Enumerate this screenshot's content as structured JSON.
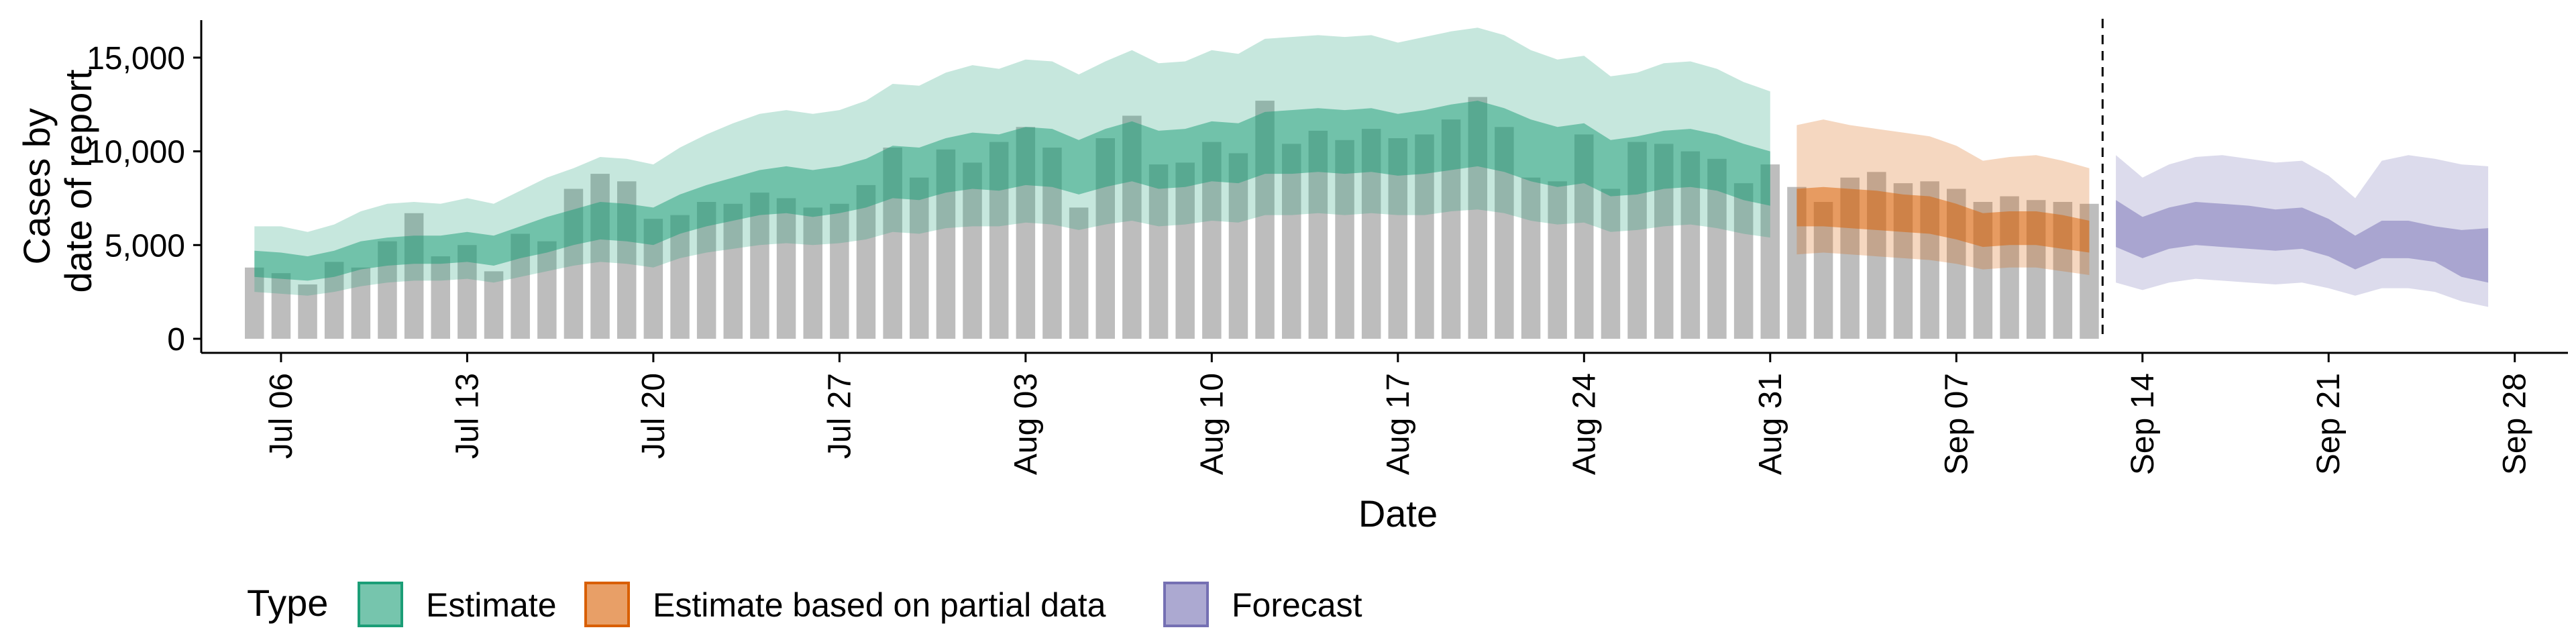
{
  "chart_data": {
    "type": "area",
    "xlabel": "Date",
    "ylabel_lines": [
      "Cases by",
      "date of report"
    ],
    "x_start": "2020-07-03",
    "x_end": "2020-09-30",
    "ylim": [
      0,
      17000
    ],
    "y_ticks": [
      0,
      5000,
      10000,
      15000
    ],
    "y_tick_labels": [
      "0",
      "5,000",
      "10,000",
      "15,000"
    ],
    "x_ticks": [
      "2020-07-06",
      "2020-07-13",
      "2020-07-20",
      "2020-07-27",
      "2020-08-03",
      "2020-08-10",
      "2020-08-17",
      "2020-08-24",
      "2020-08-31",
      "2020-09-07",
      "2020-09-14",
      "2020-09-21",
      "2020-09-28"
    ],
    "x_tick_labels": [
      "Jul 06",
      "Jul 13",
      "Jul 20",
      "Jul 27",
      "Aug 03",
      "Aug 10",
      "Aug 17",
      "Aug 24",
      "Aug 31",
      "Sep 07",
      "Sep 14",
      "Sep 21",
      "Sep 28"
    ],
    "vline_date": "2020-09-12",
    "grid": false,
    "legend": {
      "title": "Type",
      "position": "bottom",
      "items": [
        {
          "label": "Estimate",
          "color": "#1b9e77"
        },
        {
          "label": "Estimate based on partial data",
          "color": "#d95f02"
        },
        {
          "label": "Forecast",
          "color": "#7570b3"
        }
      ]
    },
    "bars": {
      "color": "#bdbdbd",
      "dates": [
        "2020-07-05",
        "2020-07-06",
        "2020-07-07",
        "2020-07-08",
        "2020-07-09",
        "2020-07-10",
        "2020-07-11",
        "2020-07-12",
        "2020-07-13",
        "2020-07-14",
        "2020-07-15",
        "2020-07-16",
        "2020-07-17",
        "2020-07-18",
        "2020-07-19",
        "2020-07-20",
        "2020-07-21",
        "2020-07-22",
        "2020-07-23",
        "2020-07-24",
        "2020-07-25",
        "2020-07-26",
        "2020-07-27",
        "2020-07-28",
        "2020-07-29",
        "2020-07-30",
        "2020-07-31",
        "2020-08-01",
        "2020-08-02",
        "2020-08-03",
        "2020-08-04",
        "2020-08-05",
        "2020-08-06",
        "2020-08-07",
        "2020-08-08",
        "2020-08-09",
        "2020-08-10",
        "2020-08-11",
        "2020-08-12",
        "2020-08-13",
        "2020-08-14",
        "2020-08-15",
        "2020-08-16",
        "2020-08-17",
        "2020-08-18",
        "2020-08-19",
        "2020-08-20",
        "2020-08-21",
        "2020-08-22",
        "2020-08-23",
        "2020-08-24",
        "2020-08-25",
        "2020-08-26",
        "2020-08-27",
        "2020-08-28",
        "2020-08-29",
        "2020-08-30",
        "2020-08-31",
        "2020-09-01",
        "2020-09-02",
        "2020-09-03",
        "2020-09-04",
        "2020-09-05",
        "2020-09-06",
        "2020-09-07",
        "2020-09-08",
        "2020-09-09",
        "2020-09-10",
        "2020-09-11",
        "2020-09-12"
      ],
      "values": [
        3800,
        3500,
        2900,
        4100,
        3800,
        5200,
        6700,
        4400,
        5000,
        3600,
        5600,
        5200,
        8000,
        8800,
        8400,
        6400,
        6600,
        7300,
        7200,
        7800,
        7500,
        7000,
        7200,
        8200,
        10200,
        8600,
        10100,
        9400,
        10500,
        11300,
        10200,
        7000,
        10700,
        11900,
        9300,
        9400,
        10500,
        9900,
        12700,
        10400,
        11100,
        10600,
        11200,
        10700,
        10900,
        11700,
        12900,
        11300,
        8600,
        8400,
        10900,
        8000,
        10500,
        10400,
        10000,
        9600,
        8300,
        9300,
        8100,
        7300,
        8600,
        8900,
        8300,
        8400,
        8000,
        7300,
        7600,
        7400,
        7300,
        7200
      ]
    },
    "series": [
      {
        "name": "Estimate",
        "color": "#1b9e77",
        "dates": [
          "2020-07-05",
          "2020-07-06",
          "2020-07-07",
          "2020-07-08",
          "2020-07-09",
          "2020-07-10",
          "2020-07-11",
          "2020-07-12",
          "2020-07-13",
          "2020-07-14",
          "2020-07-15",
          "2020-07-16",
          "2020-07-17",
          "2020-07-18",
          "2020-07-19",
          "2020-07-20",
          "2020-07-21",
          "2020-07-22",
          "2020-07-23",
          "2020-07-24",
          "2020-07-25",
          "2020-07-26",
          "2020-07-27",
          "2020-07-28",
          "2020-07-29",
          "2020-07-30",
          "2020-07-31",
          "2020-08-01",
          "2020-08-02",
          "2020-08-03",
          "2020-08-04",
          "2020-08-05",
          "2020-08-06",
          "2020-08-07",
          "2020-08-08",
          "2020-08-09",
          "2020-08-10",
          "2020-08-11",
          "2020-08-12",
          "2020-08-13",
          "2020-08-14",
          "2020-08-15",
          "2020-08-16",
          "2020-08-17",
          "2020-08-18",
          "2020-08-19",
          "2020-08-20",
          "2020-08-21",
          "2020-08-22",
          "2020-08-23",
          "2020-08-24",
          "2020-08-25",
          "2020-08-26",
          "2020-08-27",
          "2020-08-28",
          "2020-08-29",
          "2020-08-30",
          "2020-08-31"
        ],
        "outer_low": [
          2500,
          2400,
          2300,
          2500,
          2800,
          3000,
          3100,
          3100,
          3200,
          3000,
          3300,
          3600,
          3900,
          4100,
          4000,
          3800,
          4300,
          4600,
          4800,
          5000,
          5100,
          5000,
          5100,
          5300,
          5700,
          5600,
          5900,
          6000,
          6000,
          6200,
          6100,
          5800,
          6100,
          6300,
          6000,
          6100,
          6300,
          6200,
          6600,
          6600,
          6700,
          6600,
          6700,
          6600,
          6600,
          6800,
          6900,
          6700,
          6300,
          6100,
          6200,
          5700,
          5800,
          6000,
          6100,
          5900,
          5600,
          5400
        ],
        "inner_low": [
          3300,
          3200,
          3100,
          3300,
          3700,
          3900,
          4000,
          4000,
          4100,
          3900,
          4300,
          4600,
          5000,
          5300,
          5200,
          5000,
          5600,
          6000,
          6300,
          6600,
          6700,
          6500,
          6700,
          7000,
          7500,
          7400,
          7800,
          8000,
          7900,
          8200,
          8100,
          7700,
          8100,
          8400,
          8000,
          8100,
          8400,
          8300,
          8800,
          8800,
          8900,
          8800,
          8900,
          8700,
          8800,
          9000,
          9200,
          8900,
          8400,
          8100,
          8300,
          7600,
          7700,
          8000,
          8100,
          7900,
          7400,
          7100
        ],
        "inner_high": [
          4700,
          4600,
          4400,
          4700,
          5200,
          5400,
          5500,
          5500,
          5700,
          5500,
          6000,
          6500,
          6900,
          7300,
          7200,
          7000,
          7700,
          8200,
          8600,
          9000,
          9200,
          9000,
          9200,
          9600,
          10300,
          10200,
          10700,
          11000,
          10900,
          11300,
          11200,
          10600,
          11200,
          11600,
          11100,
          11200,
          11600,
          11500,
          12100,
          12200,
          12300,
          12200,
          12300,
          12000,
          12200,
          12500,
          12700,
          12300,
          11700,
          11300,
          11500,
          10600,
          10800,
          11100,
          11200,
          10900,
          10400,
          10000
        ],
        "outer_high": [
          6000,
          6000,
          5700,
          6100,
          6800,
          7200,
          7300,
          7200,
          7500,
          7200,
          7900,
          8600,
          9100,
          9700,
          9600,
          9300,
          10200,
          10900,
          11500,
          12000,
          12200,
          12000,
          12200,
          12700,
          13600,
          13500,
          14200,
          14600,
          14400,
          14900,
          14800,
          14100,
          14800,
          15400,
          14700,
          14800,
          15400,
          15200,
          16000,
          16100,
          16200,
          16100,
          16200,
          15800,
          16100,
          16400,
          16600,
          16200,
          15400,
          14900,
          15100,
          14000,
          14200,
          14700,
          14800,
          14400,
          13700,
          13200
        ]
      },
      {
        "name": "Estimate based on partial data",
        "color": "#d95f02",
        "dates": [
          "2020-09-01",
          "2020-09-02",
          "2020-09-03",
          "2020-09-04",
          "2020-09-05",
          "2020-09-06",
          "2020-09-07",
          "2020-09-08",
          "2020-09-09",
          "2020-09-10",
          "2020-09-11",
          "2020-09-12"
        ],
        "outer_low": [
          4500,
          4600,
          4500,
          4400,
          4300,
          4200,
          4000,
          3700,
          3800,
          3800,
          3600,
          3400
        ],
        "inner_low": [
          6000,
          6000,
          5900,
          5800,
          5700,
          5600,
          5300,
          4900,
          5000,
          5000,
          4800,
          4600
        ],
        "inner_high": [
          8000,
          8100,
          8000,
          7900,
          7700,
          7600,
          7200,
          6700,
          6800,
          6800,
          6600,
          6300
        ],
        "outer_high": [
          11400,
          11700,
          11400,
          11200,
          11000,
          10800,
          10300,
          9500,
          9700,
          9800,
          9500,
          9100
        ]
      },
      {
        "name": "Forecast",
        "color": "#7570b3",
        "dates": [
          "2020-09-13",
          "2020-09-14",
          "2020-09-15",
          "2020-09-16",
          "2020-09-17",
          "2020-09-18",
          "2020-09-19",
          "2020-09-20",
          "2020-09-21",
          "2020-09-22",
          "2020-09-23",
          "2020-09-24",
          "2020-09-25",
          "2020-09-26",
          "2020-09-27"
        ],
        "outer_low": [
          3000,
          2600,
          3000,
          3200,
          3100,
          3000,
          2900,
          3000,
          2700,
          2300,
          2700,
          2700,
          2500,
          2000,
          1700
        ],
        "inner_low": [
          4900,
          4300,
          4800,
          5000,
          4900,
          4800,
          4700,
          4800,
          4400,
          3700,
          4300,
          4300,
          4100,
          3300,
          3000
        ],
        "inner_high": [
          7400,
          6500,
          7000,
          7300,
          7200,
          7100,
          6900,
          7000,
          6400,
          5500,
          6300,
          6300,
          6000,
          5800,
          5900
        ],
        "outer_high": [
          9800,
          8600,
          9300,
          9700,
          9800,
          9600,
          9400,
          9500,
          8700,
          7500,
          9500,
          9800,
          9600,
          9300,
          9200
        ]
      }
    ]
  }
}
